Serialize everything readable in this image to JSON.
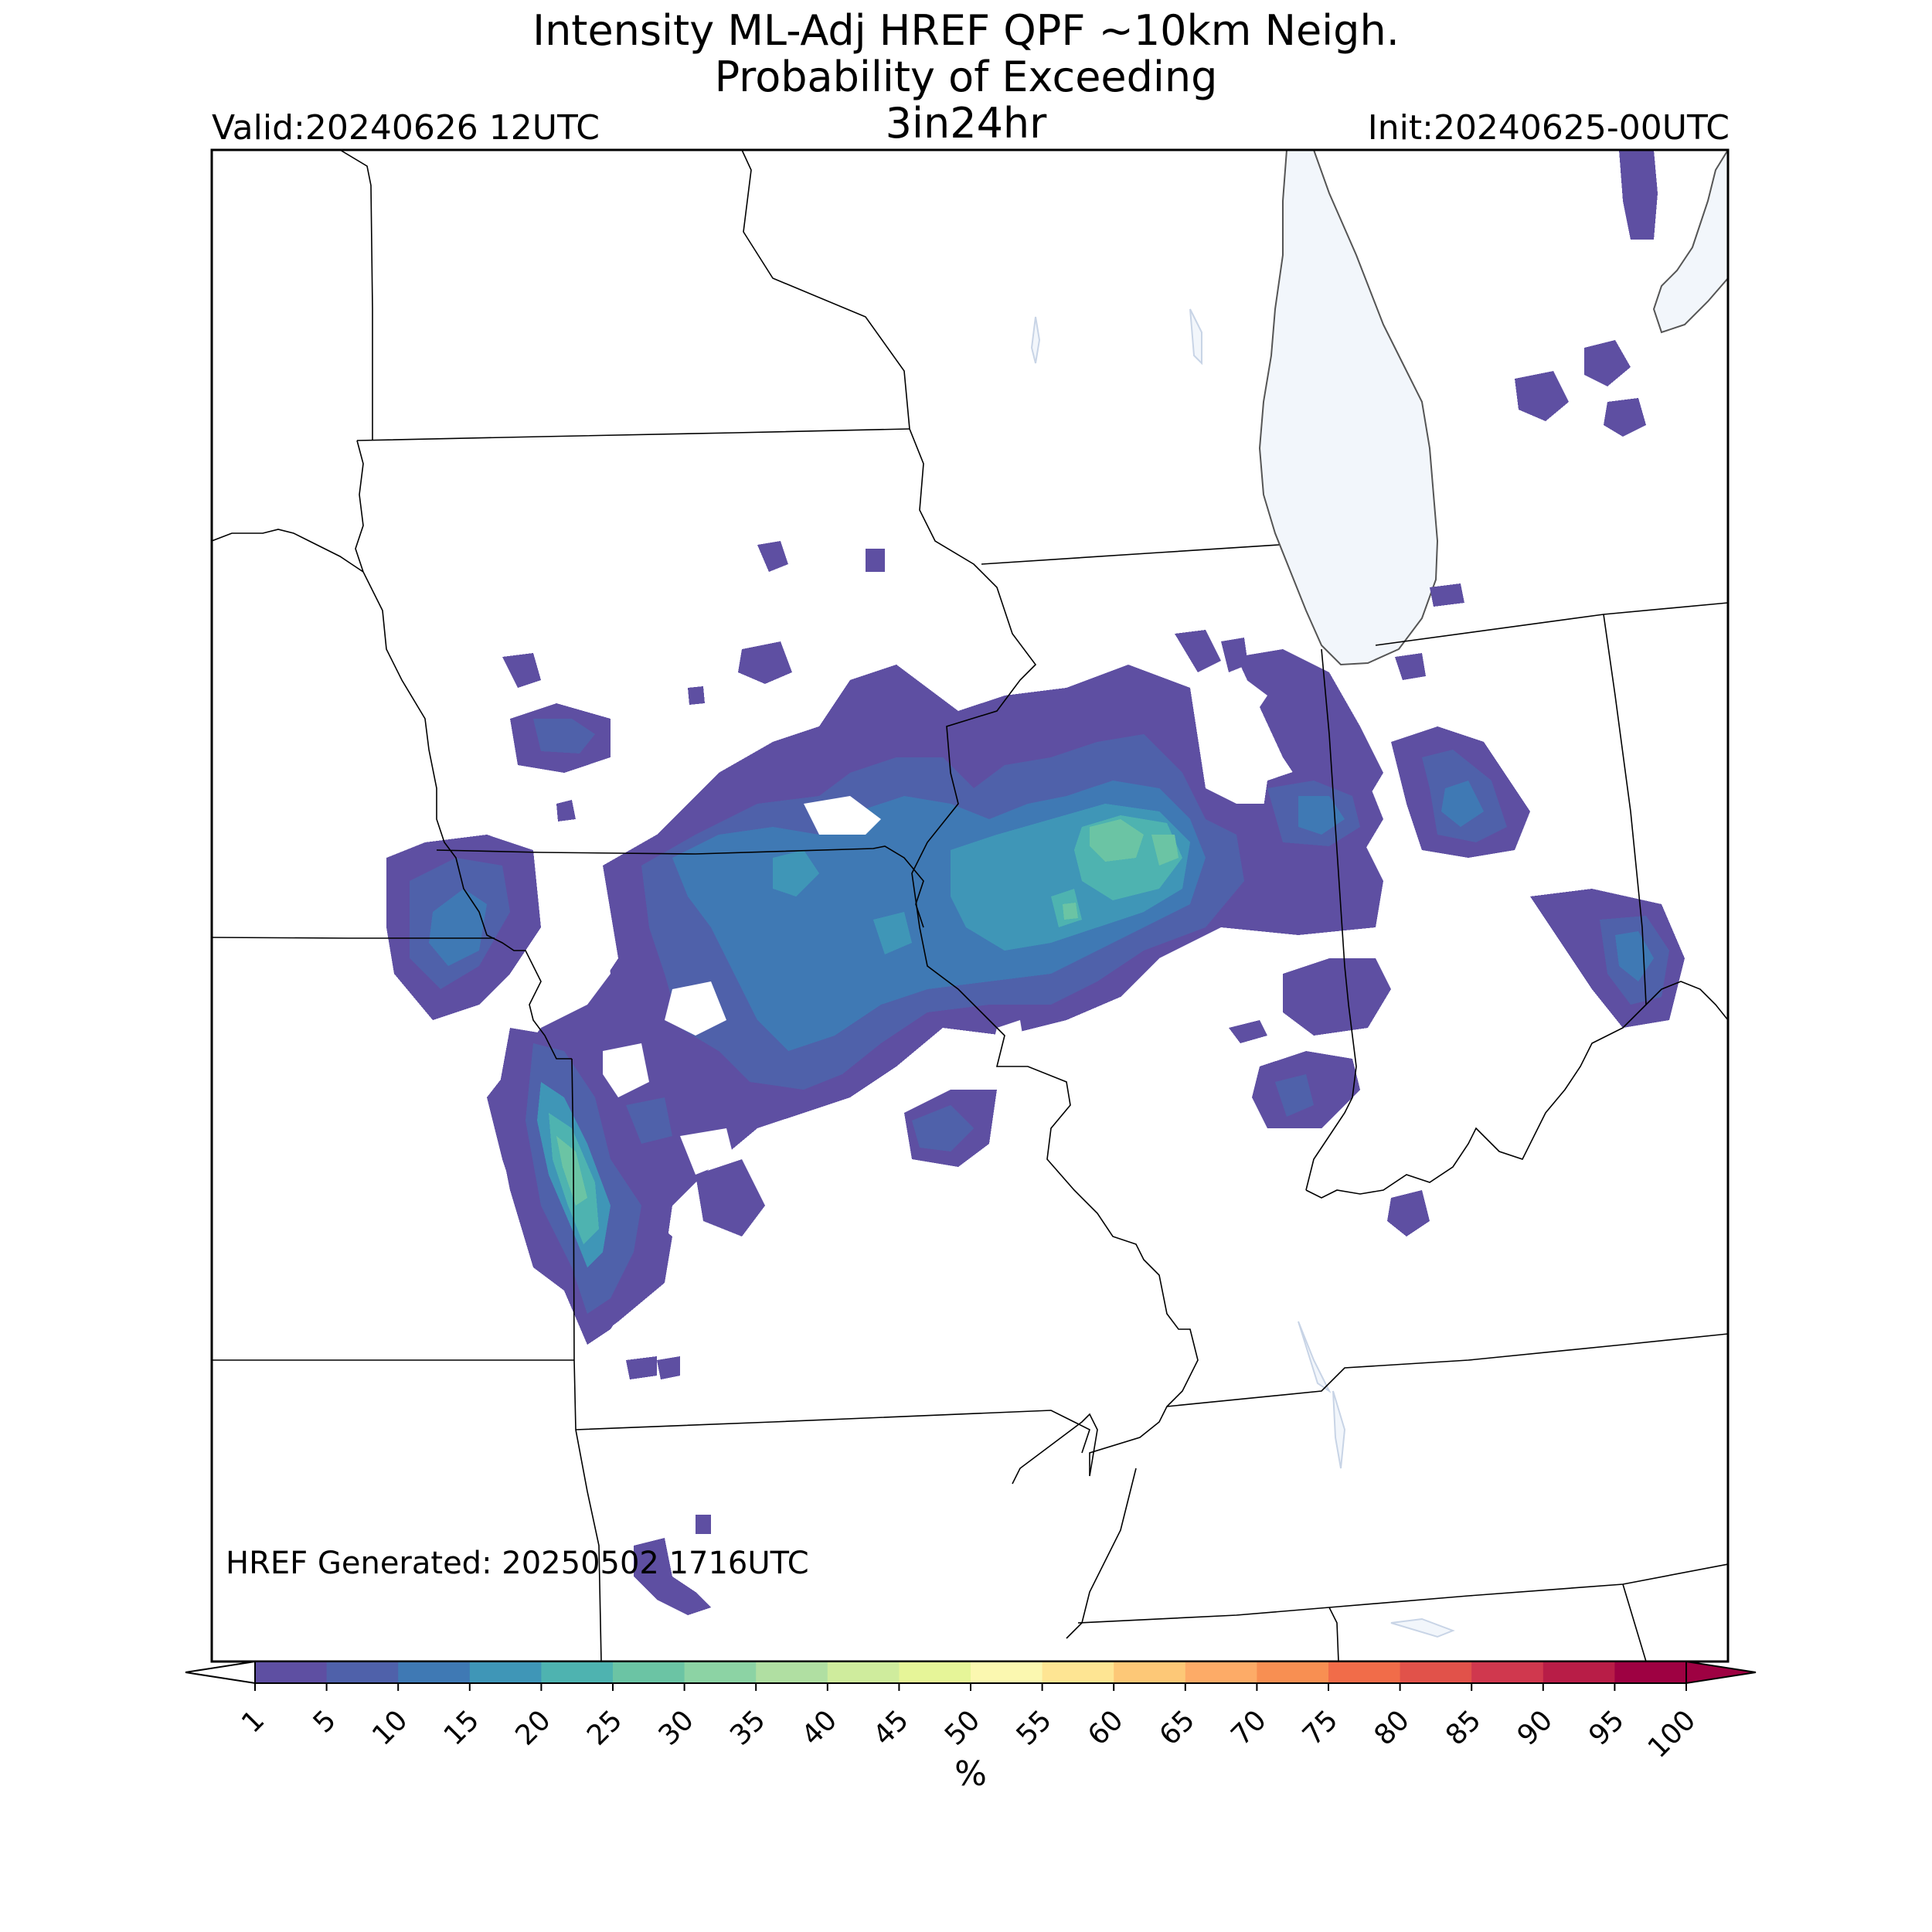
{
  "header": {
    "title_line1": "Intensity ML-Adj HREF QPF ~10km Neigh.",
    "title_line2": "Probability of Exceeding",
    "title_line3": "3in24hr",
    "valid": "Valid:20240626 12UTC",
    "init": "Init:20240625-00UTC"
  },
  "footer": {
    "generated": "HREF Generated: 20250502 1716UTC"
  },
  "colorbar": {
    "unit": "%",
    "ticks": [
      "1",
      "5",
      "10",
      "15",
      "20",
      "25",
      "30",
      "35",
      "40",
      "45",
      "50",
      "55",
      "60",
      "65",
      "70",
      "75",
      "80",
      "85",
      "90",
      "95",
      "100"
    ],
    "colors": [
      "#5e4fa2",
      "#4f61aa",
      "#3f79b4",
      "#3f96b7",
      "#4eb3b0",
      "#6bc4a4",
      "#8cd3a4",
      "#b0dfa2",
      "#cfec9d",
      "#e6f598",
      "#fbf8b0",
      "#fee593",
      "#fdc877",
      "#fdab67",
      "#f88f52",
      "#f16c49",
      "#e1524a",
      "#d0384e",
      "#b81d47",
      "#9e0142"
    ],
    "under_color": "#ffffff",
    "over_color": "#9e0142"
  },
  "map": {
    "water_color": "#f2f6fb"
  }
}
